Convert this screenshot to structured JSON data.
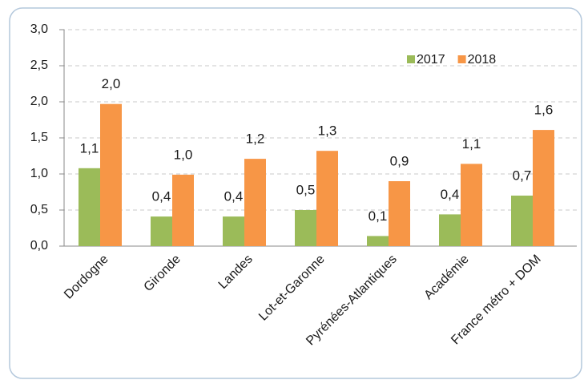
{
  "chart_data": {
    "type": "bar",
    "categories": [
      "Dordogne",
      "Gironde",
      "Landes",
      "Lot-et-Garonne",
      "Pyrénées-Atlantiques",
      "Académie",
      "France métro + DOM"
    ],
    "series": [
      {
        "name": "2017",
        "color": "#9bbb59",
        "values": [
          1.08,
          0.41,
          0.41,
          0.5,
          0.14,
          0.44,
          0.7
        ],
        "value_labels": [
          "1,1",
          "0,4",
          "0,4",
          "0,5",
          "0,1",
          "0,4",
          "0,7"
        ]
      },
      {
        "name": "2018",
        "color": "#f79646",
        "values": [
          1.97,
          0.99,
          1.21,
          1.32,
          0.9,
          1.14,
          1.61
        ],
        "value_labels": [
          "2,0",
          "1,0",
          "1,2",
          "1,3",
          "0,9",
          "1,1",
          "1,6"
        ]
      }
    ],
    "ylim": [
      0,
      3
    ],
    "yticks": [
      {
        "value": 0,
        "label": "0,0"
      },
      {
        "value": 0.5,
        "label": "0,5"
      },
      {
        "value": 1,
        "label": "1,0"
      },
      {
        "value": 1.5,
        "label": "1,5"
      },
      {
        "value": 2,
        "label": "2,0"
      },
      {
        "value": 2.5,
        "label": "2,5"
      },
      {
        "value": 3,
        "label": "3,0"
      }
    ],
    "grid": true,
    "legend": "top-right"
  }
}
